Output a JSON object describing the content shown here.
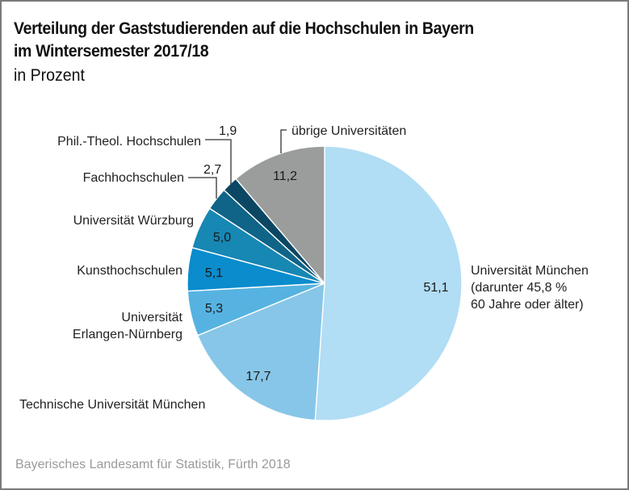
{
  "chart_data": {
    "type": "pie",
    "title": "Verteilung der Gaststudierenden auf die Hochschulen in Bayern im Wintersemester 2017/18",
    "title_lines": [
      "Verteilung der Gaststudierenden auf die Hochschulen in Bayern",
      "im Wintersemester 2017/18"
    ],
    "subtitle": "in Prozent",
    "unit": "%",
    "start": "top",
    "direction": "clockwise",
    "slices": [
      {
        "label_lines": [
          "Universität München",
          "(darunter 45,8 %",
          "60 Jahre oder älter)"
        ],
        "label": "Universität München (darunter 45,8 % 60 Jahre oder älter)",
        "value": 51.1,
        "value_text": "51,1",
        "color": "#b1ddf5"
      },
      {
        "label_lines": [
          "Technische Universität München"
        ],
        "label": "Technische Universität München",
        "value": 17.7,
        "value_text": "17,7",
        "color": "#87c6e8"
      },
      {
        "label_lines": [
          "Universität",
          "Erlangen-Nürnberg"
        ],
        "label": "Universität Erlangen-Nürnberg",
        "value": 5.3,
        "value_text": "5,3",
        "color": "#56b3e1"
      },
      {
        "label_lines": [
          "Kunsthochschulen"
        ],
        "label": "Kunsthochschulen",
        "value": 5.1,
        "value_text": "5,1",
        "color": "#0a8ccd"
      },
      {
        "label_lines": [
          "Universität Würzburg"
        ],
        "label": "Universität Würzburg",
        "value": 5.0,
        "value_text": "5,0",
        "color": "#1787b4"
      },
      {
        "label_lines": [
          "Fachhochschulen"
        ],
        "label": "Fachhochschulen",
        "value": 2.7,
        "value_text": "2,7",
        "color": "#0f6488"
      },
      {
        "label_lines": [
          "Phil.-Theol. Hochschulen"
        ],
        "label": "Phil.-Theol. Hochschulen",
        "value": 1.9,
        "value_text": "1,9",
        "color": "#0b4763"
      },
      {
        "label_lines": [
          "übrige Universitäten"
        ],
        "label": "übrige Universitäten",
        "value": 11.2,
        "value_text": "11,2",
        "color": "#9b9c9c"
      }
    ]
  },
  "source": "Bayerisches Landesamt für Statistik, Fürth 2018"
}
